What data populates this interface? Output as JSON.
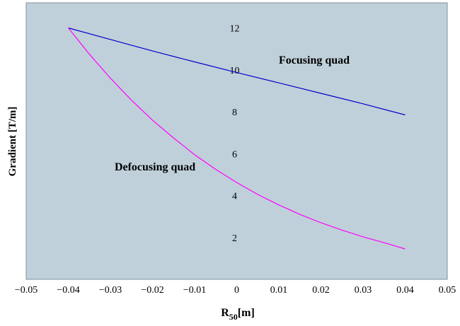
{
  "chart_data": {
    "type": "line",
    "xlabel_main": "R",
    "xlabel_sub": "50",
    "xlabel_unit": "[m]",
    "ylabel": "Gradient [T/m]",
    "xlim": [
      -0.05,
      0.05
    ],
    "ylim": [
      0,
      13.2
    ],
    "x_ticks": [
      -0.05,
      -0.04,
      -0.03,
      -0.02,
      -0.01,
      0,
      0.01,
      0.02,
      0.03,
      0.04,
      0.05
    ],
    "x_tick_labels": [
      "−0.05",
      "−0.04",
      "−0.03",
      "−0.02",
      "−0.01",
      "0",
      "0.01",
      "0.02",
      "0.03",
      "0.04",
      "0.05"
    ],
    "y_ticks": [
      2,
      4,
      6,
      8,
      10,
      12
    ],
    "y_tick_labels": [
      "2",
      "4",
      "6",
      "8",
      "10",
      "12"
    ],
    "grid": false,
    "legend": "none",
    "plot_background": "#c0d0da",
    "series": [
      {
        "name": "Focusing quad",
        "color": "#0000cc",
        "x": [
          -0.04,
          -0.03,
          -0.02,
          -0.01,
          0,
          0.01,
          0.02,
          0.03,
          0.04
        ],
        "values": [
          12.0,
          11.45,
          10.9,
          10.38,
          9.87,
          9.38,
          8.88,
          8.38,
          7.85
        ]
      },
      {
        "name": "Defocusing quad",
        "color": "#ff00ff",
        "x": [
          -0.04,
          -0.035,
          -0.03,
          -0.025,
          -0.02,
          -0.015,
          -0.01,
          -0.005,
          0,
          0.005,
          0.01,
          0.015,
          0.02,
          0.025,
          0.03,
          0.035,
          0.04
        ],
        "values": [
          12.0,
          10.75,
          9.6,
          8.55,
          7.6,
          6.75,
          5.95,
          5.25,
          4.62,
          4.05,
          3.55,
          3.1,
          2.7,
          2.35,
          2.03,
          1.75,
          1.45
        ]
      }
    ],
    "annotations": [
      {
        "text": "Focusing quad",
        "x": 0.01,
        "y": 10.3
      },
      {
        "text": "Defocusing quad",
        "x": -0.029,
        "y": 5.2
      }
    ]
  }
}
